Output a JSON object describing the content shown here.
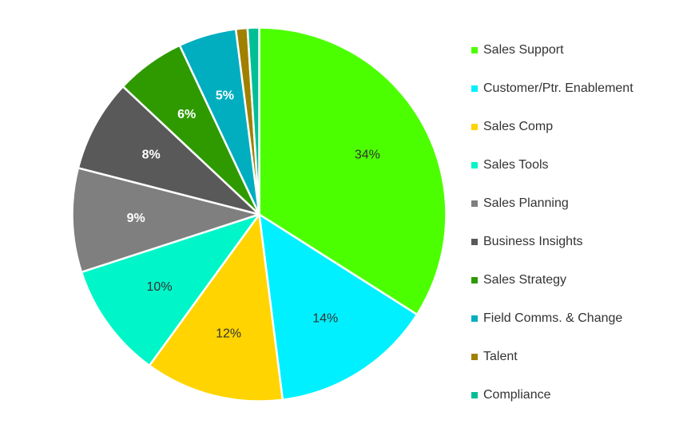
{
  "chart_data": {
    "type": "pie",
    "title": "",
    "legend_position": "right",
    "slices": [
      {
        "name": "Sales Support",
        "value": 34,
        "label": "34%",
        "color": "#4CFF00",
        "label_color": "#333333"
      },
      {
        "name": "Customer/Ptr. Enablement",
        "value": 14,
        "label": "14%",
        "color": "#00F0FF",
        "label_color": "#333333"
      },
      {
        "name": "Sales Comp",
        "value": 12,
        "label": "12%",
        "color": "#FFD400",
        "label_color": "#333333"
      },
      {
        "name": "Sales Tools",
        "value": 10,
        "label": "10%",
        "color": "#00F5C8",
        "label_color": "#333333"
      },
      {
        "name": "Sales Planning",
        "value": 9,
        "label": "9%",
        "color": "#7F7F7F",
        "label_color": "#ffffff"
      },
      {
        "name": "Business Insights",
        "value": 8,
        "label": "8%",
        "color": "#595959",
        "label_color": "#ffffff"
      },
      {
        "name": "Sales Strategy",
        "value": 6,
        "label": "6%",
        "color": "#2E9A00",
        "label_color": "#ffffff"
      },
      {
        "name": "Field Comms. & Change",
        "value": 5,
        "label": "5%",
        "color": "#00AEC0",
        "label_color": "#ffffff"
      },
      {
        "name": "Talent",
        "value": 1,
        "label": "",
        "color": "#A08000",
        "label_color": "#ffffff"
      },
      {
        "name": "Compliance",
        "value": 1,
        "label": "",
        "color": "#00BF94",
        "label_color": "#ffffff"
      }
    ]
  }
}
